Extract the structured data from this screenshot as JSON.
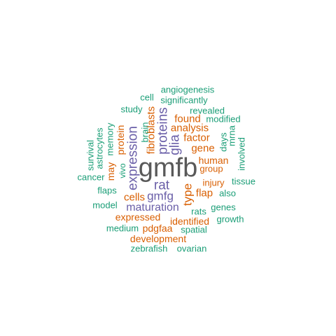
{
  "palette": {
    "gray": "#595959",
    "purple": "#6a5fa8",
    "orange": "#d95f02",
    "teal": "#1b9e77"
  },
  "words": [
    {
      "text": "gmfb",
      "color": "gray"
    },
    {
      "text": "expression",
      "color": "purple"
    },
    {
      "text": "proteins",
      "color": "purple"
    },
    {
      "text": "glia",
      "color": "purple"
    },
    {
      "text": "rat",
      "color": "purple"
    },
    {
      "text": "gmfg",
      "color": "purple"
    },
    {
      "text": "maturation",
      "color": "purple"
    },
    {
      "text": "fibroblasts",
      "color": "orange"
    },
    {
      "text": "analysis",
      "color": "orange"
    },
    {
      "text": "found",
      "color": "orange"
    },
    {
      "text": "factor",
      "color": "orange"
    },
    {
      "text": "gene",
      "color": "orange"
    },
    {
      "text": "human",
      "color": "orange"
    },
    {
      "text": "group",
      "color": "orange"
    },
    {
      "text": "injury",
      "color": "orange"
    },
    {
      "text": "flap",
      "color": "orange"
    },
    {
      "text": "type",
      "color": "orange"
    },
    {
      "text": "cells",
      "color": "orange"
    },
    {
      "text": "expressed",
      "color": "orange"
    },
    {
      "text": "identified",
      "color": "orange"
    },
    {
      "text": "pdgfaa",
      "color": "orange"
    },
    {
      "text": "development",
      "color": "orange"
    },
    {
      "text": "protein",
      "color": "orange"
    },
    {
      "text": "may",
      "color": "orange"
    },
    {
      "text": "angiogenesis",
      "color": "teal"
    },
    {
      "text": "cell",
      "color": "teal"
    },
    {
      "text": "significantly",
      "color": "teal"
    },
    {
      "text": "study",
      "color": "teal"
    },
    {
      "text": "revealed",
      "color": "teal"
    },
    {
      "text": "modified",
      "color": "teal"
    },
    {
      "text": "brain",
      "color": "teal"
    },
    {
      "text": "memory",
      "color": "teal"
    },
    {
      "text": "astrocytes",
      "color": "teal"
    },
    {
      "text": "survival",
      "color": "teal"
    },
    {
      "text": "days",
      "color": "teal"
    },
    {
      "text": "mrna",
      "color": "teal"
    },
    {
      "text": "involved",
      "color": "teal"
    },
    {
      "text": "vivo",
      "color": "teal"
    },
    {
      "text": "cancer",
      "color": "teal"
    },
    {
      "text": "tissue",
      "color": "teal"
    },
    {
      "text": "flaps",
      "color": "teal"
    },
    {
      "text": "also",
      "color": "teal"
    },
    {
      "text": "model",
      "color": "teal"
    },
    {
      "text": "genes",
      "color": "teal"
    },
    {
      "text": "rats",
      "color": "teal"
    },
    {
      "text": "growth",
      "color": "teal"
    },
    {
      "text": "medium",
      "color": "teal"
    },
    {
      "text": "spatial",
      "color": "teal"
    },
    {
      "text": "zebrafish",
      "color": "teal"
    },
    {
      "text": "ovarian",
      "color": "teal"
    }
  ]
}
